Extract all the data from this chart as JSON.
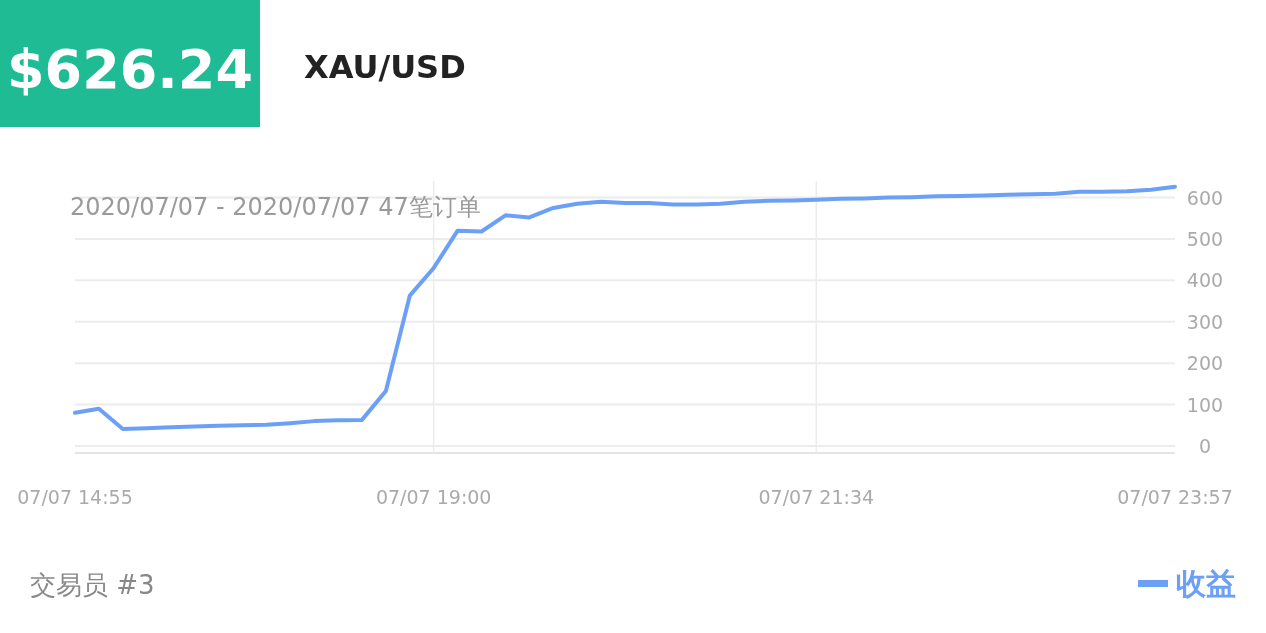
{
  "chart_data": {
    "type": "line",
    "title": "$626.24",
    "subtitle": "XAU/USD",
    "annotations": [
      "2020/07/07 - 2020/07/07  47笔订单",
      "交易员 #3"
    ],
    "categories": [
      "07/07 14:55",
      null,
      null,
      null,
      null,
      null,
      null,
      null,
      null,
      null,
      null,
      null,
      null,
      null,
      null,
      "07/07 19:00",
      null,
      null,
      null,
      null,
      null,
      null,
      null,
      null,
      null,
      null,
      null,
      null,
      null,
      null,
      null,
      "07/07 21:34",
      null,
      null,
      null,
      null,
      null,
      null,
      null,
      null,
      null,
      null,
      null,
      null,
      null,
      null,
      "07/07 23:57"
    ],
    "series": [
      {
        "name": "收益",
        "color": "#6ca0f7",
        "values": [
          80,
          90,
          41,
          43,
          45,
          47,
          49,
          50,
          51,
          55,
          60,
          62,
          63,
          133,
          363,
          430,
          520,
          518,
          557,
          552,
          575,
          585,
          590,
          587,
          587,
          583,
          583,
          585,
          590,
          592,
          593,
          595,
          597,
          598,
          600,
          601,
          603,
          604,
          605,
          607,
          608,
          609,
          614,
          614,
          615,
          619,
          626.24
        ]
      }
    ],
    "ylim": [
      -17,
      640
    ],
    "yticks": [
      0,
      100,
      200,
      300,
      400,
      500,
      600
    ],
    "grid": true,
    "legend": "bottom right",
    "marker": "none",
    "line_style": "solid"
  }
}
